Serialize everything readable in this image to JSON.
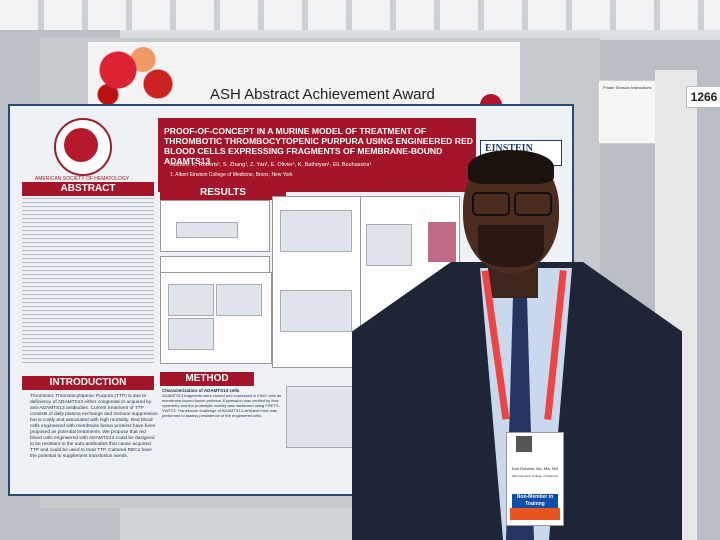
{
  "award": {
    "title": "ASH Abstract Achievement Award"
  },
  "poster": {
    "society": "AMERICAN SOCIETY OF HEMATOLOGY",
    "title": "PROOF-OF-CONCEPT IN A MURINE MODEL OF TREATMENT OF THROMBOTIC THROMBOCYTOPENIC PURPURA USING ENGINEERED RED BLOOD CELLS EXPRESSING FRAGMENTS OF MEMBRANE-BOUND ADAMTS13",
    "authors": "Authors: K. Roberts¹, S. Zhang¹, Z. Yan¹, E. Olivier¹, K. Bathoyan¹, Eli. Bouhassira¹",
    "affiliation": "1. Albert Einstein College of Medicine, Bronx, New York",
    "institution": "EINSTEIN",
    "institution_sub": "Albert Einstein College of Medicine",
    "sections": {
      "abstract": "ABSTRACT",
      "results": "RESULTS",
      "introduction": "INTRODUCTION",
      "method": "METHOD"
    },
    "introduction_text": "Thrombotic Thrombocytopenic Purpura (TTP) is due to deficiency of ADAMTS13 either congenital or acquired by anti-ADAMTS13 antibodies. Current treatment of TTP consists of daily plasma exchange and immune suppression but is costly and associated with high mortality. Red blood cells engineered with membrane fusion proteins have been proposed as potential treatments. We propose that red blood cells engineered with ADAMTS13 could be designed to be resistant to the auto-antibodies that cause acquired TTP and could be used to treat TTP. Cultured RBCs have the potential to supplement transfusion needs.",
    "method_heading": "Characterization of ADAMTS13 cells",
    "method_text": "ADAMTS13 fragments were cloned and expressed in K562 cells as membrane-bound fusion proteins. Expression was verified by flow cytometry and the proteolytic activity was measured using FRETS-VWF73. Transfusion challenge of ADAMTS13-deficient mice was performed to assess persistence of the engineered cells."
  },
  "booth": {
    "number": "1266",
    "sign_title": "Poster Session Instructions"
  },
  "badge": {
    "name": "Karl Roberts, BA, MA, MS",
    "organization": "Albert Einstein College of Medicine",
    "category": "Non-Member in Training"
  },
  "colors": {
    "poster_red": "#a5152a",
    "poster_blue": "#274a7a",
    "badge_blue": "#0d4fa8"
  }
}
